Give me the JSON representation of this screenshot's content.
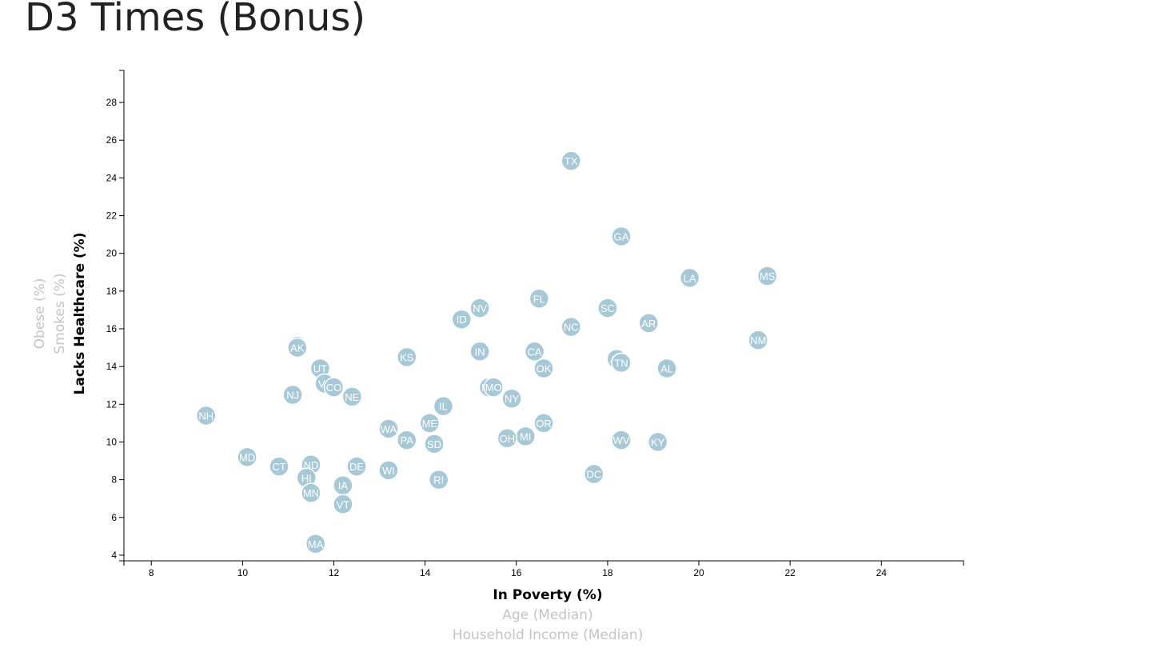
{
  "page": {
    "heading": "D3 Times (Bonus)"
  },
  "colors": {
    "marker": "#a7c9d7",
    "marker_stroke": "#ffffff",
    "label": "#ffffff",
    "inactive_axis": "#c4c4c4"
  },
  "chart_data": {
    "type": "scatter",
    "title": "",
    "x_axis_labels": [
      {
        "label": "In Poverty (%)",
        "active": true
      },
      {
        "label": "Age (Median)",
        "active": false
      },
      {
        "label": "Household Income (Median)",
        "active": false
      }
    ],
    "y_axis_labels": [
      {
        "label": "Lacks Healthcare (%)",
        "active": true
      },
      {
        "label": "Smokes (%)",
        "active": false
      },
      {
        "label": "Obese (%)",
        "active": false
      }
    ],
    "xlim": [
      7.4,
      25.8
    ],
    "ylim": [
      3.7,
      29.7
    ],
    "xticks": [
      8,
      10,
      12,
      14,
      16,
      18,
      20,
      22,
      24
    ],
    "yticks": [
      4,
      6,
      8,
      10,
      12,
      14,
      16,
      18,
      20,
      22,
      24,
      26,
      28
    ],
    "grid": false,
    "points": [
      {
        "abbr": "TX",
        "x": 17.2,
        "y": 24.9
      },
      {
        "abbr": "GA",
        "x": 18.3,
        "y": 20.9
      },
      {
        "abbr": "LA",
        "x": 19.8,
        "y": 18.7
      },
      {
        "abbr": "MS",
        "x": 21.5,
        "y": 18.8
      },
      {
        "abbr": "FL",
        "x": 16.5,
        "y": 17.6
      },
      {
        "abbr": "NV",
        "x": 15.2,
        "y": 17.1
      },
      {
        "abbr": "SC",
        "x": 18.0,
        "y": 17.1
      },
      {
        "abbr": "ID",
        "x": 14.8,
        "y": 16.5
      },
      {
        "abbr": "AR",
        "x": 18.9,
        "y": 16.3
      },
      {
        "abbr": "NC",
        "x": 17.2,
        "y": 16.1
      },
      {
        "abbr": "NM",
        "x": 21.3,
        "y": 15.4
      },
      {
        "abbr": "WY",
        "x": 11.2,
        "y": 15.1
      },
      {
        "abbr": "AK",
        "x": 11.2,
        "y": 15.0
      },
      {
        "abbr": "IN",
        "x": 15.2,
        "y": 14.8
      },
      {
        "abbr": "CA",
        "x": 16.4,
        "y": 14.8
      },
      {
        "abbr": "KS",
        "x": 13.6,
        "y": 14.5
      },
      {
        "abbr": "AZ",
        "x": 18.2,
        "y": 14.4
      },
      {
        "abbr": "TN",
        "x": 18.3,
        "y": 14.2
      },
      {
        "abbr": "AL",
        "x": 19.3,
        "y": 13.9
      },
      {
        "abbr": "OK",
        "x": 16.6,
        "y": 13.9
      },
      {
        "abbr": "UT",
        "x": 11.7,
        "y": 13.9
      },
      {
        "abbr": "VA",
        "x": 11.8,
        "y": 13.1
      },
      {
        "abbr": "CO",
        "x": 12.0,
        "y": 12.9
      },
      {
        "abbr": "MT",
        "x": 15.4,
        "y": 12.9
      },
      {
        "abbr": "MO",
        "x": 15.5,
        "y": 12.9
      },
      {
        "abbr": "NJ",
        "x": 11.1,
        "y": 12.5
      },
      {
        "abbr": "NE",
        "x": 12.4,
        "y": 12.4
      },
      {
        "abbr": "NY",
        "x": 15.9,
        "y": 12.3
      },
      {
        "abbr": "IL",
        "x": 14.4,
        "y": 11.9
      },
      {
        "abbr": "NH",
        "x": 9.2,
        "y": 11.4
      },
      {
        "abbr": "ME",
        "x": 14.1,
        "y": 11.0
      },
      {
        "abbr": "OR",
        "x": 16.6,
        "y": 11.0
      },
      {
        "abbr": "WA",
        "x": 13.2,
        "y": 10.7
      },
      {
        "abbr": "MI",
        "x": 16.2,
        "y": 10.3
      },
      {
        "abbr": "OH",
        "x": 15.8,
        "y": 10.2
      },
      {
        "abbr": "PA",
        "x": 13.6,
        "y": 10.1
      },
      {
        "abbr": "WV",
        "x": 18.3,
        "y": 10.1
      },
      {
        "abbr": "KY",
        "x": 19.1,
        "y": 10.0
      },
      {
        "abbr": "SD",
        "x": 14.2,
        "y": 9.9
      },
      {
        "abbr": "MD",
        "x": 10.1,
        "y": 9.2
      },
      {
        "abbr": "ND",
        "x": 11.5,
        "y": 8.8
      },
      {
        "abbr": "CT",
        "x": 10.8,
        "y": 8.7
      },
      {
        "abbr": "DE",
        "x": 12.5,
        "y": 8.7
      },
      {
        "abbr": "WI",
        "x": 13.2,
        "y": 8.5
      },
      {
        "abbr": "DC",
        "x": 17.7,
        "y": 8.3
      },
      {
        "abbr": "HI",
        "x": 11.4,
        "y": 8.1
      },
      {
        "abbr": "RI",
        "x": 14.3,
        "y": 8.0
      },
      {
        "abbr": "IA",
        "x": 12.2,
        "y": 7.7
      },
      {
        "abbr": "MN",
        "x": 11.5,
        "y": 7.3
      },
      {
        "abbr": "VT",
        "x": 12.2,
        "y": 6.7
      },
      {
        "abbr": "MA",
        "x": 11.6,
        "y": 4.6
      }
    ]
  }
}
